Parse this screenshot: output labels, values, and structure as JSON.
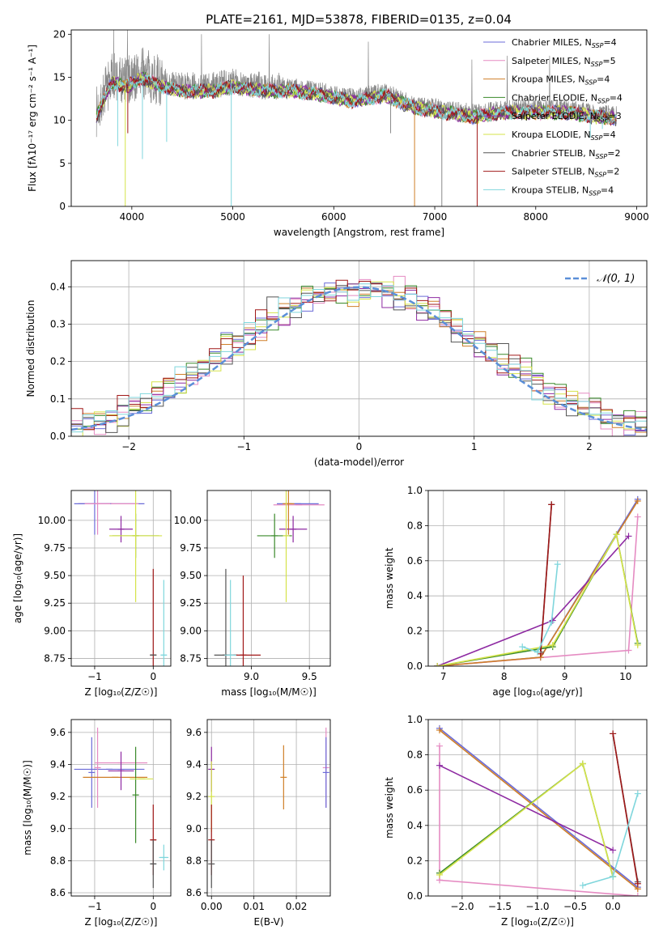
{
  "figure_title": "PLATE=2161, MJD=53878, FIBERID=0135, z=0.04",
  "legend_colors": [
    "#6b6bd8",
    "#e58bc2",
    "#cf7f28",
    "#3a8a2a",
    "#8e2aa2",
    "#d5e34a",
    "#555555",
    "#a01818",
    "#7fd6dc"
  ],
  "chart_data": [
    {
      "type": "line",
      "name": "spectrum",
      "xlabel": "wavelength [Angstrom, rest frame]",
      "ylabel": "Flux [fλ10⁻¹⁷ erg cm⁻² s⁻¹ A⁻¹]",
      "xlim": [
        3400,
        9100
      ],
      "ylim": [
        0,
        20.5
      ],
      "xticks": [
        4000,
        5000,
        6000,
        7000,
        8000,
        9000
      ],
      "yticks": [
        0,
        5,
        10,
        15,
        20
      ],
      "grid": false,
      "legend_position": "top-right",
      "data_envelope": {
        "x": [
          3650,
          3800,
          3950,
          4100,
          4300,
          4500,
          4800,
          5000,
          5300,
          5600,
          5900,
          6200,
          6500,
          6800,
          7100,
          7400,
          7700,
          8000,
          8300,
          8600,
          8800
        ],
        "y": [
          11.0,
          15.0,
          14.5,
          15.5,
          14.5,
          14.0,
          14.0,
          14.5,
          14.0,
          14.0,
          13.5,
          12.8,
          13.5,
          12.0,
          11.5,
          11.0,
          11.5,
          11.5,
          11.5,
          11.0,
          10.8
        ]
      },
      "series": [
        {
          "name": "Chabrier MILES, N_SSP=4",
          "label_main": "Chabrier MILES, N",
          "label_sub": "SSP",
          "label_tail": "=4",
          "color": "#6b6bd8"
        },
        {
          "name": "Salpeter MILES, N_SSP=5",
          "label_main": "Salpeter MILES, N",
          "label_sub": "SSP",
          "label_tail": "=5",
          "color": "#e58bc2"
        },
        {
          "name": "Kroupa MILES, N_SSP=4",
          "label_main": "Kroupa MILES, N",
          "label_sub": "SSP",
          "label_tail": "=4",
          "color": "#cf7f28"
        },
        {
          "name": "Chabrier ELODIE, N_SSP=4",
          "label_main": "Chabrier ELODIE, N",
          "label_sub": "SSP",
          "label_tail": "=4",
          "color": "#3a8a2a"
        },
        {
          "name": "Salpeter ELODIE, N_SSP=3",
          "label_main": "Salpeter ELODIE, N",
          "label_sub": "SSP",
          "label_tail": "=3",
          "color": "#8e2aa2"
        },
        {
          "name": "Kroupa ELODIE, N_SSP=4",
          "label_main": "Kroupa ELODIE, N",
          "label_sub": "SSP",
          "label_tail": "=4",
          "color": "#d5e34a"
        },
        {
          "name": "Chabrier STELIB, N_SSP=2",
          "label_main": "Chabrier STELIB, N",
          "label_sub": "SSP",
          "label_tail": "=2",
          "color": "#555555"
        },
        {
          "name": "Salpeter STELIB, N_SSP=2",
          "label_main": "Salpeter STELIB, N",
          "label_sub": "SSP",
          "label_tail": "=2",
          "color": "#a01818"
        },
        {
          "name": "Kroupa STELIB, N_SSP=4",
          "label_main": "Kroupa STELIB, N",
          "label_sub": "SSP",
          "label_tail": "=4",
          "color": "#7fd6dc"
        }
      ]
    },
    {
      "type": "line",
      "name": "residuals",
      "xlabel": "(data-model)/error",
      "ylabel": "Normed distribution",
      "xlim": [
        -2.5,
        2.5
      ],
      "ylim": [
        0,
        0.47
      ],
      "xticks": [
        -2,
        -1,
        0,
        1,
        2
      ],
      "yticks": [
        0.0,
        0.1,
        0.2,
        0.3,
        0.4
      ],
      "grid": true,
      "legend_position": "top-right",
      "legend_label": "𝒩(0, 1)",
      "reference_curve": {
        "mean": 0,
        "sigma": 1,
        "color": "#5b8fd8"
      },
      "bin_width": 0.1
    },
    {
      "type": "scatter",
      "name": "age-vs-Z",
      "xlabel": "Z [log₁₀(Z/Z☉)]",
      "ylabel": "age [log₁₀(age/yr)]",
      "xlim": [
        -1.4,
        0.3
      ],
      "ylim": [
        8.68,
        10.27
      ],
      "xticks": [
        -1,
        0
      ],
      "yticks": [
        8.75,
        9.0,
        9.25,
        9.5,
        9.75,
        10.0
      ],
      "grid": true,
      "points": [
        {
          "x": -0.75,
          "y": 10.15,
          "xerr": 0.6,
          "yerr": 0.0,
          "color": "#6b6bd8"
        },
        {
          "x": -0.75,
          "y": 10.15,
          "xerr": 0.5,
          "yerr": 0.0,
          "color": "#e58bc2"
        },
        {
          "x": -1.0,
          "y": 10.15,
          "xerr": 0.28,
          "yerr": 0.28,
          "color": "#6b6bd8"
        },
        {
          "x": -0.95,
          "y": 10.15,
          "xerr": 0.22,
          "yerr": 0.28,
          "color": "#e58bc2"
        },
        {
          "x": -0.55,
          "y": 9.92,
          "xerr": 0.2,
          "yerr": 0.12,
          "color": "#8e2aa2"
        },
        {
          "x": -0.3,
          "y": 9.86,
          "xerr": 0.4,
          "yerr": 0.2,
          "color": "#3a8a2a"
        },
        {
          "x": -0.3,
          "y": 9.86,
          "xerr": 0.45,
          "yerr": 0.6,
          "color": "#d5e34a"
        },
        {
          "x": 0.0,
          "y": 8.78,
          "xerr": 0.0,
          "yerr": 0.78,
          "color": "#a01818"
        },
        {
          "x": 0.0,
          "y": 8.78,
          "xerr": 0.05,
          "yerr": 0.0,
          "color": "#555555"
        },
        {
          "x": 0.18,
          "y": 8.78,
          "xerr": 0.05,
          "yerr": 0.68,
          "color": "#7fd6dc"
        }
      ]
    },
    {
      "type": "scatter",
      "name": "age-vs-mass",
      "xlabel": "mass [log₁₀(M/M☉)]",
      "ylabel": "",
      "xlim": [
        8.62,
        9.68
      ],
      "ylim": [
        8.68,
        10.27
      ],
      "xticks": [
        9.0,
        9.5
      ],
      "yticks": [
        8.75,
        9.0,
        9.25,
        9.5,
        9.75,
        10.0
      ],
      "grid": true,
      "points": [
        {
          "x": 9.4,
          "y": 10.15,
          "xerr": 0.18,
          "yerr": 0.0,
          "color": "#6b6bd8"
        },
        {
          "x": 9.41,
          "y": 10.14,
          "xerr": 0.22,
          "yerr": 0.0,
          "color": "#e58bc2"
        },
        {
          "x": 9.32,
          "y": 10.15,
          "xerr": 0.05,
          "yerr": 0.28,
          "color": "#cf7f28"
        },
        {
          "x": 9.36,
          "y": 9.92,
          "xerr": 0.12,
          "yerr": 0.12,
          "color": "#8e2aa2"
        },
        {
          "x": 9.2,
          "y": 9.86,
          "xerr": 0.15,
          "yerr": 0.2,
          "color": "#3a8a2a"
        },
        {
          "x": 9.3,
          "y": 9.86,
          "xerr": 0.0,
          "yerr": 0.6,
          "color": "#d5e34a"
        },
        {
          "x": 8.78,
          "y": 8.78,
          "xerr": 0.1,
          "yerr": 0.78,
          "color": "#555555"
        },
        {
          "x": 8.93,
          "y": 8.78,
          "xerr": 0.15,
          "yerr": 0.72,
          "color": "#a01818"
        },
        {
          "x": 8.82,
          "y": 8.78,
          "xerr": 0.05,
          "yerr": 0.68,
          "color": "#7fd6dc"
        }
      ]
    },
    {
      "type": "line",
      "name": "mass-weight-vs-age",
      "xlabel": "age [log₁₀(age/yr)]",
      "ylabel": "mass weight",
      "xlim": [
        6.75,
        10.35
      ],
      "ylim": [
        0.0,
        1.0
      ],
      "xticks": [
        7,
        8,
        9,
        10
      ],
      "yticks": [
        0.0,
        0.2,
        0.4,
        0.6,
        0.8,
        1.0
      ],
      "grid": true,
      "series": [
        {
          "name": "Chabrier MILES",
          "color": "#6b6bd8",
          "x": [
            6.9,
            8.6,
            10.2
          ],
          "y": [
            0.0,
            0.05,
            0.95
          ]
        },
        {
          "name": "Salpeter MILES",
          "color": "#e58bc2",
          "x": [
            6.9,
            10.05,
            10.2
          ],
          "y": [
            0.0,
            0.09,
            0.85
          ]
        },
        {
          "name": "Kroupa MILES",
          "color": "#cf7f28",
          "x": [
            6.9,
            8.6,
            10.2
          ],
          "y": [
            0.0,
            0.05,
            0.94
          ]
        },
        {
          "name": "Chabrier ELODIE",
          "color": "#3a8a2a",
          "x": [
            6.9,
            8.8,
            9.85,
            10.2
          ],
          "y": [
            0.0,
            0.11,
            0.75,
            0.13
          ]
        },
        {
          "name": "Salpeter ELODIE",
          "color": "#8e2aa2",
          "x": [
            6.9,
            8.8,
            10.05
          ],
          "y": [
            0.0,
            0.26,
            0.74
          ]
        },
        {
          "name": "Kroupa ELODIE",
          "color": "#d5e34a",
          "x": [
            6.9,
            8.8,
            9.85,
            10.2
          ],
          "y": [
            0.0,
            0.12,
            0.75,
            0.12
          ]
        },
        {
          "name": "Chabrier STELIB",
          "color": "#555555",
          "x": [
            8.6,
            8.78
          ],
          "y": [
            0.08,
            0.92
          ]
        },
        {
          "name": "Salpeter STELIB",
          "color": "#a01818",
          "x": [
            8.6,
            8.78
          ],
          "y": [
            0.07,
            0.92
          ]
        },
        {
          "name": "Kroupa STELIB",
          "color": "#7fd6dc",
          "x": [
            8.3,
            8.55,
            8.78,
            8.88
          ],
          "y": [
            0.11,
            0.08,
            0.25,
            0.58
          ]
        }
      ]
    },
    {
      "type": "scatter",
      "name": "mass-vs-Z",
      "xlabel": "Z [log₁₀(Z/Z☉)]",
      "ylabel": "mass [log₁₀(M/M☉)]",
      "xlim": [
        -1.4,
        0.3
      ],
      "ylim": [
        8.58,
        9.68
      ],
      "xticks": [
        -1,
        0
      ],
      "yticks": [
        8.6,
        8.8,
        9.0,
        9.2,
        9.4,
        9.6
      ],
      "grid": true,
      "points": [
        {
          "x": -0.75,
          "y": 9.37,
          "xerr": 0.6,
          "yerr": 0.0,
          "color": "#6b6bd8"
        },
        {
          "x": -0.55,
          "y": 9.41,
          "xerr": 0.45,
          "yerr": 0.0,
          "color": "#e58bc2"
        },
        {
          "x": -1.05,
          "y": 9.35,
          "xerr": 0.0,
          "yerr": 0.22,
          "color": "#6b6bd8"
        },
        {
          "x": -0.95,
          "y": 9.38,
          "xerr": 0.0,
          "yerr": 0.25,
          "color": "#e58bc2"
        },
        {
          "x": -0.65,
          "y": 9.32,
          "xerr": 0.55,
          "yerr": 0.0,
          "color": "#cf7f28"
        },
        {
          "x": -0.55,
          "y": 9.36,
          "xerr": 0.22,
          "yerr": 0.12,
          "color": "#8e2aa2"
        },
        {
          "x": -0.3,
          "y": 9.21,
          "xerr": 0.0,
          "yerr": 0.3,
          "color": "#3a8a2a"
        },
        {
          "x": -0.2,
          "y": 9.31,
          "xerr": 0.2,
          "yerr": 0.0,
          "color": "#d5e34a"
        },
        {
          "x": 0.0,
          "y": 8.93,
          "xerr": 0.05,
          "yerr": 0.22,
          "color": "#a01818"
        },
        {
          "x": 0.0,
          "y": 8.78,
          "xerr": 0.05,
          "yerr": 0.15,
          "color": "#555555"
        },
        {
          "x": 0.18,
          "y": 8.82,
          "xerr": 0.08,
          "yerr": 0.08,
          "color": "#7fd6dc"
        }
      ]
    },
    {
      "type": "scatter",
      "name": "mass-vs-EBV",
      "xlabel": "E(B-V)",
      "ylabel": "",
      "xlim": [
        -0.001,
        0.028
      ],
      "ylim": [
        8.58,
        9.68
      ],
      "xticks": [
        0.0,
        0.01,
        0.02
      ],
      "yticks": [
        8.6,
        8.8,
        9.0,
        9.2,
        9.4,
        9.6
      ],
      "grid": true,
      "points": [
        {
          "x": 0.0,
          "y": 9.37,
          "xerr": 0.0,
          "yerr": 0.14,
          "color": "#8e2aa2"
        },
        {
          "x": 0.0,
          "y": 9.2,
          "xerr": 0.0,
          "yerr": 0.22,
          "color": "#d5e34a"
        },
        {
          "x": 0.0,
          "y": 8.93,
          "xerr": 0.0,
          "yerr": 0.22,
          "color": "#a01818"
        },
        {
          "x": 0.0,
          "y": 8.78,
          "xerr": 0.0,
          "yerr": 0.15,
          "color": "#555555"
        },
        {
          "x": 0.017,
          "y": 9.32,
          "xerr": 0.0,
          "yerr": 0.2,
          "color": "#cf7f28"
        },
        {
          "x": 0.027,
          "y": 9.38,
          "xerr": 0.0,
          "yerr": 0.25,
          "color": "#e58bc2"
        },
        {
          "x": 0.027,
          "y": 9.35,
          "xerr": 0.0,
          "yerr": 0.22,
          "color": "#6b6bd8"
        }
      ]
    },
    {
      "type": "line",
      "name": "mass-weight-vs-Z",
      "xlabel": "Z [log₁₀(Z/Z☉)]",
      "ylabel": "mass weight",
      "xlim": [
        -2.45,
        0.45
      ],
      "ylim": [
        0.0,
        1.0
      ],
      "xticks": [
        -2.0,
        -1.5,
        -1.0,
        -0.5,
        0.0
      ],
      "yticks": [
        0.0,
        0.2,
        0.4,
        0.6,
        0.8,
        1.0
      ],
      "grid": true,
      "series": [
        {
          "name": "Chabrier MILES",
          "color": "#6b6bd8",
          "x": [
            -2.3,
            0.33
          ],
          "y": [
            0.95,
            0.05
          ]
        },
        {
          "name": "Salpeter MILES",
          "color": "#e58bc2",
          "x": [
            -2.3,
            -2.3,
            0.33
          ],
          "y": [
            0.85,
            0.09,
            0.0
          ]
        },
        {
          "name": "Kroupa MILES",
          "color": "#cf7f28",
          "x": [
            -2.3,
            0.33
          ],
          "y": [
            0.94,
            0.04
          ]
        },
        {
          "name": "Chabrier ELODIE",
          "color": "#3a8a2a",
          "x": [
            -2.3,
            -0.4,
            0.0
          ],
          "y": [
            0.13,
            0.75,
            0.11
          ]
        },
        {
          "name": "Salpeter ELODIE",
          "color": "#8e2aa2",
          "x": [
            -2.3,
            0.0
          ],
          "y": [
            0.74,
            0.26
          ]
        },
        {
          "name": "Kroupa ELODIE",
          "color": "#d5e34a",
          "x": [
            -2.3,
            -0.4,
            0.0
          ],
          "y": [
            0.12,
            0.75,
            0.11
          ]
        },
        {
          "name": "Chabrier STELIB",
          "color": "#555555",
          "x": [
            0.0,
            0.33
          ],
          "y": [
            0.92,
            0.08
          ]
        },
        {
          "name": "Salpeter STELIB",
          "color": "#a01818",
          "x": [
            0.0,
            0.33
          ],
          "y": [
            0.92,
            0.07
          ]
        },
        {
          "name": "Kroupa STELIB",
          "color": "#7fd6dc",
          "x": [
            -0.4,
            0.0,
            0.33
          ],
          "y": [
            0.06,
            0.11,
            0.58
          ]
        }
      ]
    }
  ]
}
